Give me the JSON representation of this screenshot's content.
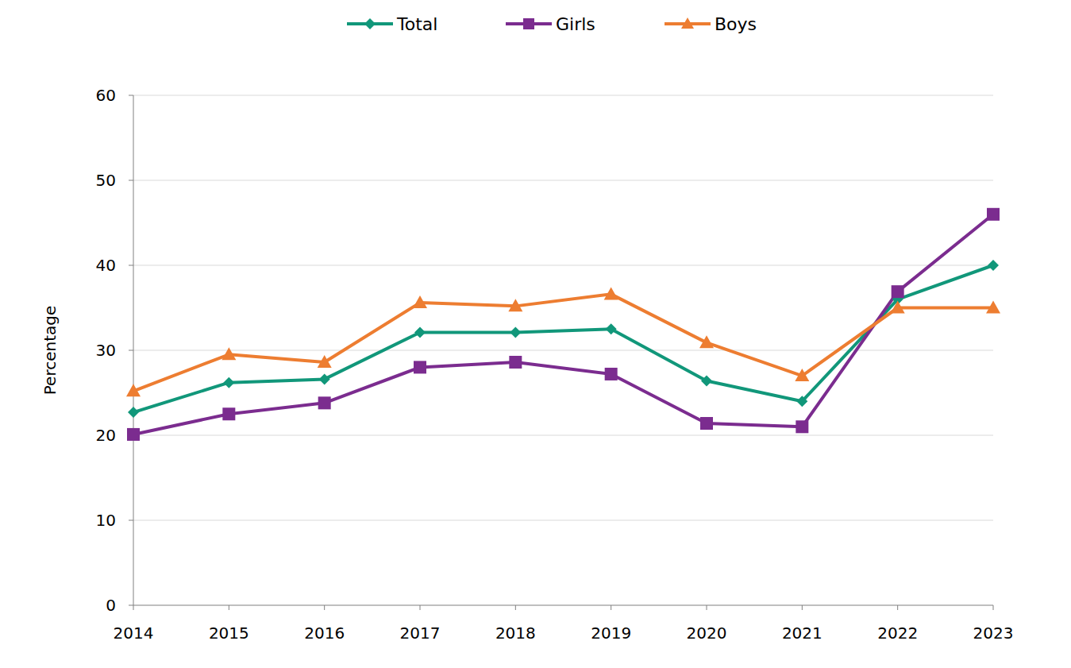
{
  "chart_data": {
    "type": "line",
    "y_label": "Percentage",
    "categories": [
      "2014",
      "2015",
      "2016",
      "2017",
      "2018",
      "2019",
      "2020",
      "2021",
      "2022",
      "2023"
    ],
    "series": [
      {
        "name": "Total",
        "color": "#11977a",
        "marker": "diamond",
        "values": [
          22.7,
          26.2,
          26.6,
          32.1,
          32.1,
          32.5,
          26.4,
          24.0,
          36.0,
          40.0
        ]
      },
      {
        "name": "Girls",
        "color": "#7b2c8f",
        "marker": "square",
        "values": [
          20.1,
          22.5,
          23.8,
          28.0,
          28.6,
          27.2,
          21.4,
          21.0,
          36.9,
          46.0
        ]
      },
      {
        "name": "Boys",
        "color": "#ed7d31",
        "marker": "triangle",
        "values": [
          25.2,
          29.5,
          28.6,
          35.6,
          35.2,
          36.6,
          30.9,
          27.0,
          35.0,
          35.0
        ]
      }
    ],
    "ylim": [
      0,
      60
    ],
    "yticks": [
      0,
      10,
      20,
      30,
      40,
      50,
      60
    ],
    "grid": true,
    "legend": "top"
  }
}
